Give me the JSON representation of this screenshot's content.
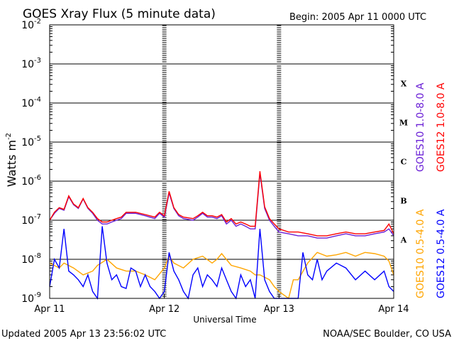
{
  "chart_data": {
    "type": "line",
    "title": "GOES Xray Flux (5 minute data)",
    "begin": "Begin:  2005 Apr 11 0000 UTC",
    "xlabel": "Universal Time",
    "ylabel": "Watts m",
    "ylabel_sup": "-2",
    "y_scale": "log",
    "ylim": [
      1e-09,
      0.01
    ],
    "xlim": [
      0,
      72
    ],
    "x_unit": "hours since 2005 Apr 11 0000 UTC",
    "grid": true,
    "x_ticks": [
      {
        "x": 0,
        "label": "Apr 11"
      },
      {
        "x": 24,
        "label": "Apr 12"
      },
      {
        "x": 48,
        "label": "Apr 13"
      },
      {
        "x": 72,
        "label": "Apr 14"
      }
    ],
    "y_ticks": [
      {
        "exp": -9,
        "base": "10",
        "sup": "-9"
      },
      {
        "exp": -8,
        "base": "10",
        "sup": "-8"
      },
      {
        "exp": -7,
        "base": "10",
        "sup": "-7"
      },
      {
        "exp": -6,
        "base": "10",
        "sup": "-6"
      },
      {
        "exp": -5,
        "base": "10",
        "sup": "-5"
      },
      {
        "exp": -4,
        "base": "10",
        "sup": "-4"
      },
      {
        "exp": -3,
        "base": "10",
        "sup": "-3"
      },
      {
        "exp": -2,
        "base": "10",
        "sup": "-2"
      }
    ],
    "flare_classes": [
      {
        "label": "A",
        "exp": -7.5
      },
      {
        "label": "B",
        "exp": -6.5
      },
      {
        "label": "C",
        "exp": -5.5
      },
      {
        "label": "M",
        "exp": -4.5
      },
      {
        "label": "X",
        "exp": -3.5
      }
    ],
    "series": [
      {
        "name": "GOES10 0.5-4.0 A",
        "color": "#ffa500",
        "x": [
          0,
          2,
          3,
          5,
          7,
          9,
          10,
          12,
          14,
          16,
          18,
          20,
          22,
          24,
          25,
          26,
          28,
          30,
          32,
          34,
          35,
          36,
          38,
          40,
          42,
          43,
          44,
          46,
          47,
          48,
          50,
          51,
          52,
          54,
          56,
          58,
          60,
          62,
          64,
          66,
          68,
          70,
          71,
          72
        ],
        "y": [
          8e-09,
          6e-09,
          8e-09,
          6e-09,
          4e-09,
          5e-09,
          7e-09,
          1e-08,
          6e-09,
          5e-09,
          5e-09,
          4e-09,
          3e-09,
          6e-09,
          1.2e-08,
          8e-09,
          6e-09,
          1e-08,
          1.2e-08,
          8e-09,
          1e-08,
          1.4e-08,
          7e-09,
          6e-09,
          5e-09,
          4e-09,
          4e-09,
          3e-09,
          2e-09,
          1.5e-09,
          1e-09,
          3e-09,
          3e-09,
          8e-09,
          1.5e-08,
          1.2e-08,
          1.3e-08,
          1.5e-08,
          1.2e-08,
          1.5e-08,
          1.4e-08,
          1.2e-08,
          9e-09,
          4e-09
        ]
      },
      {
        "name": "GOES10 1.0-8.0 A",
        "color": "#6a1fd6",
        "x": [
          0,
          1,
          2,
          3,
          4,
          5,
          6,
          7,
          8,
          9,
          10,
          11,
          12,
          13,
          14,
          15,
          16,
          18,
          20,
          22,
          23,
          24,
          25,
          26,
          27,
          28,
          30,
          31,
          32,
          33,
          34,
          35,
          36,
          37,
          38,
          39,
          40,
          41,
          42,
          43,
          44,
          45,
          46,
          47,
          48,
          50,
          52,
          54,
          56,
          58,
          60,
          62,
          64,
          66,
          68,
          70,
          71,
          72
        ],
        "y": [
          1e-07,
          1.5e-07,
          2e-07,
          1.8e-07,
          4e-07,
          2.5e-07,
          2e-07,
          3.5e-07,
          2e-07,
          1.5e-07,
          1e-07,
          8e-08,
          8e-08,
          9e-08,
          1e-07,
          1.1e-07,
          1.5e-07,
          1.5e-07,
          1.3e-07,
          1.1e-07,
          1.5e-07,
          1.2e-07,
          5e-07,
          2e-07,
          1.3e-07,
          1.1e-07,
          1e-07,
          1.2e-07,
          1.5e-07,
          1.2e-07,
          1.2e-07,
          1.1e-07,
          1.3e-07,
          8e-08,
          1e-07,
          7e-08,
          8e-08,
          7e-08,
          6e-08,
          6e-08,
          1.6e-06,
          2e-07,
          1e-07,
          7e-08,
          5e-08,
          4.5e-08,
          4e-08,
          4e-08,
          3.5e-08,
          3.5e-08,
          4e-08,
          4.5e-08,
          4e-08,
          4e-08,
          4.5e-08,
          5e-08,
          6e-08,
          4e-08
        ]
      },
      {
        "name": "GOES12 1.0-8.0 A",
        "color": "#ff0000",
        "x": [
          0,
          1,
          2,
          3,
          4,
          5,
          6,
          7,
          8,
          9,
          10,
          11,
          12,
          13,
          14,
          15,
          16,
          18,
          20,
          22,
          23,
          24,
          25,
          26,
          27,
          28,
          30,
          31,
          32,
          33,
          34,
          35,
          36,
          37,
          38,
          39,
          40,
          41,
          42,
          43,
          44,
          45,
          46,
          47,
          48,
          50,
          52,
          54,
          56,
          58,
          60,
          62,
          64,
          66,
          68,
          70,
          71,
          72
        ],
        "y": [
          1e-07,
          1.6e-07,
          2.1e-07,
          1.9e-07,
          4.2e-07,
          2.6e-07,
          2.1e-07,
          3.6e-07,
          2.1e-07,
          1.6e-07,
          1.1e-07,
          9e-08,
          9e-08,
          1e-07,
          1.1e-07,
          1.2e-07,
          1.6e-07,
          1.6e-07,
          1.4e-07,
          1.2e-07,
          1.6e-07,
          1.3e-07,
          5.5e-07,
          2.1e-07,
          1.4e-07,
          1.2e-07,
          1.1e-07,
          1.3e-07,
          1.6e-07,
          1.3e-07,
          1.3e-07,
          1.2e-07,
          1.4e-07,
          9e-08,
          1.1e-07,
          8e-08,
          9e-08,
          8e-08,
          7e-08,
          7e-08,
          1.8e-06,
          2.2e-07,
          1.1e-07,
          8e-08,
          6e-08,
          5e-08,
          5e-08,
          4.5e-08,
          4e-08,
          4e-08,
          4.5e-08,
          5e-08,
          4.5e-08,
          4.5e-08,
          5e-08,
          5.5e-08,
          8e-08,
          4.5e-08
        ]
      },
      {
        "name": "GOES12 0.5-4.0 A",
        "color": "#0000ff",
        "x": [
          0,
          1,
          2,
          3,
          4,
          5,
          6,
          7,
          8,
          9,
          10,
          11,
          12,
          13,
          14,
          15,
          16,
          17,
          18,
          19,
          20,
          21,
          22,
          23,
          24,
          25,
          26,
          27,
          28,
          29,
          30,
          31,
          32,
          33,
          34,
          35,
          36,
          37,
          38,
          39,
          40,
          41,
          42,
          43,
          44,
          45,
          46,
          47,
          48,
          50,
          51,
          52,
          53,
          54,
          55,
          56,
          57,
          58,
          60,
          62,
          64,
          66,
          68,
          70,
          71,
          72
        ],
        "y": [
          2e-09,
          1e-08,
          6e-09,
          6e-08,
          5e-09,
          4e-09,
          3e-09,
          2e-09,
          4e-09,
          1.5e-09,
          1e-09,
          7e-08,
          8e-09,
          3e-09,
          4e-09,
          2e-09,
          1.8e-09,
          6e-09,
          5e-09,
          2e-09,
          4e-09,
          2e-09,
          1.5e-09,
          1e-09,
          1.5e-09,
          1.5e-08,
          5e-09,
          3e-09,
          1.5e-09,
          1e-09,
          4e-09,
          6e-09,
          2e-09,
          4e-09,
          3e-09,
          2e-09,
          6e-09,
          3e-09,
          1.5e-09,
          1e-09,
          4e-09,
          2e-09,
          3e-09,
          1e-09,
          6e-08,
          3e-09,
          1.5e-09,
          1e-09,
          1e-09,
          1e-09,
          1e-09,
          1e-09,
          1.5e-08,
          4e-09,
          3e-09,
          1e-08,
          3e-09,
          5e-09,
          8e-09,
          6e-09,
          3e-09,
          5e-09,
          3e-09,
          5e-09,
          2e-09,
          1.5e-09
        ]
      }
    ]
  },
  "footer": {
    "updated": "Updated 2005 Apr 13 23:56:02 UTC",
    "credit": "NOAA/SEC Boulder, CO USA"
  }
}
